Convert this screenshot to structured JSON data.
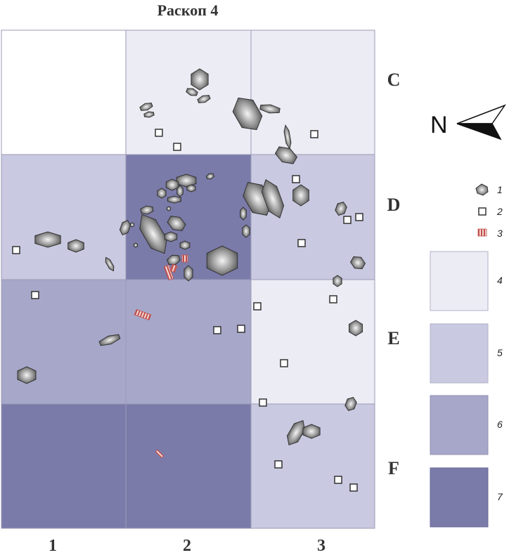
{
  "title": "Раскоп 4",
  "north_label": "N",
  "rows": [
    "C",
    "D",
    "E",
    "F"
  ],
  "columns": [
    "1",
    "2",
    "3"
  ],
  "cell_shading": [
    [
      "white",
      "level4",
      "level4"
    ],
    [
      "level5",
      "level7",
      "level5"
    ],
    [
      "level6",
      "level6",
      "level4"
    ],
    [
      "level7",
      "level7",
      "level5"
    ]
  ],
  "colors": {
    "white": "#ffffff",
    "level4": "#ececf5",
    "level5": "#c9c9e1",
    "level6": "#a7a7ca",
    "level7": "#7b7baa",
    "grid_line": "#9a9ab5",
    "find_fill": "#7a7a7a",
    "find_stroke": "#333333",
    "square_stroke": "#333333",
    "hatch": "#c0504d"
  },
  "legend": [
    {
      "num": "1",
      "symbol": "stone-icon"
    },
    {
      "num": "2",
      "symbol": "square-marker-icon"
    },
    {
      "num": "3",
      "symbol": "hatched-rect-icon"
    },
    {
      "num": "4",
      "swatch": "level4"
    },
    {
      "num": "5",
      "swatch": "level5"
    },
    {
      "num": "6",
      "swatch": "level6"
    },
    {
      "num": "7",
      "swatch": "level7"
    }
  ]
}
